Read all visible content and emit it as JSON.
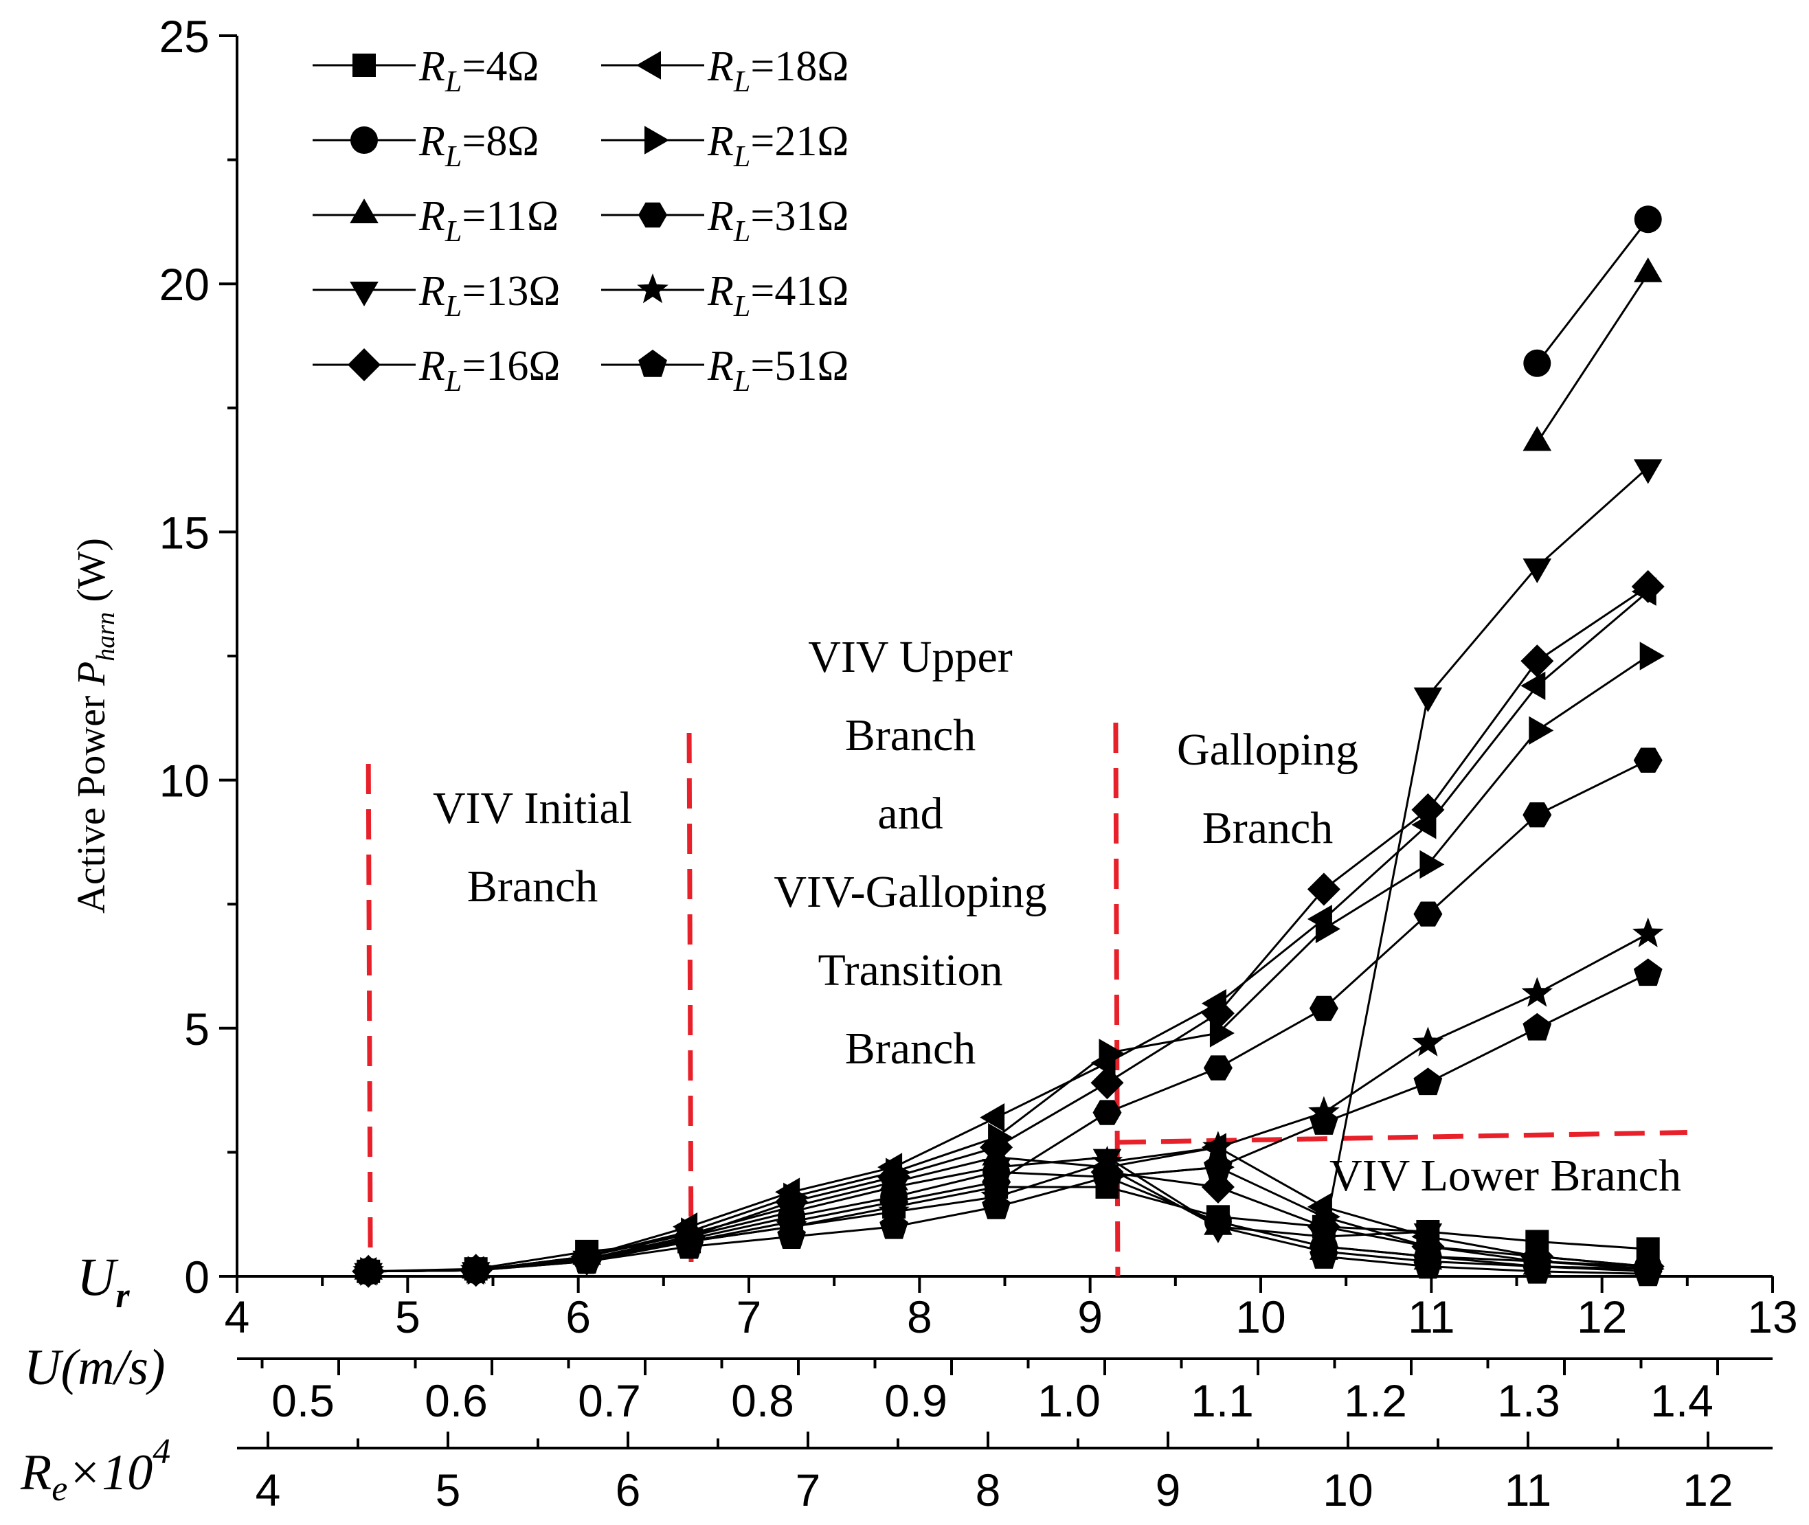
{
  "colors": {
    "ink": "#000000",
    "annotation": "#e8202a"
  },
  "chart_data": {
    "type": "line",
    "ylabel_main": "Active Power ",
    "ylabel_sym": "P",
    "ylabel_sub": "harn",
    "ylabel_unit": " (W)",
    "xlim": [
      4,
      13
    ],
    "ylim": [
      0,
      25
    ],
    "x_ticks": [
      "4",
      "5",
      "6",
      "7",
      "8",
      "9",
      "10",
      "11",
      "12",
      "13"
    ],
    "y_ticks": [
      "0",
      "5",
      "10",
      "15",
      "20",
      "25"
    ],
    "axis_ur": {
      "sym": "U",
      "sub": "r"
    },
    "axis_u": {
      "label_sym": "U",
      "label_rest": "(m/s)",
      "ticks": [
        {
          "v": 0.5,
          "label": "0.5"
        },
        {
          "v": 0.6,
          "label": "0.6"
        },
        {
          "v": 0.7,
          "label": "0.7"
        },
        {
          "v": 0.8,
          "label": "0.8"
        },
        {
          "v": 0.9,
          "label": "0.9"
        },
        {
          "v": 1.0,
          "label": "1.0"
        },
        {
          "v": 1.1,
          "label": "1.1"
        },
        {
          "v": 1.2,
          "label": "1.2"
        },
        {
          "v": 1.3,
          "label": "1.3"
        },
        {
          "v": 1.4,
          "label": "1.4"
        }
      ]
    },
    "axis_re": {
      "label_sym": "R",
      "label_sub": "e",
      "label_mid": "×10",
      "label_sup": "4",
      "ticks": [
        {
          "v": 4,
          "label": "4"
        },
        {
          "v": 5,
          "label": "5"
        },
        {
          "v": 6,
          "label": "6"
        },
        {
          "v": 7,
          "label": "7"
        },
        {
          "v": 8,
          "label": "8"
        },
        {
          "v": 9,
          "label": "9"
        },
        {
          "v": 10,
          "label": "10"
        },
        {
          "v": 11,
          "label": "11"
        },
        {
          "v": 12,
          "label": "12"
        }
      ]
    },
    "x": [
      4.77,
      5.4,
      6.05,
      6.65,
      7.25,
      7.85,
      8.45,
      9.1,
      9.75,
      10.37,
      10.98,
      11.62,
      12.27
    ],
    "series": [
      {
        "name": "R_L=4Ω",
        "marker": "square",
        "values": [
          0.1,
          0.15,
          0.5,
          0.7,
          1.0,
          1.4,
          1.8,
          1.8,
          1.2,
          1.0,
          0.9,
          0.7,
          0.55
        ]
      },
      {
        "name": "R_L=8Ω",
        "marker": "circle",
        "values": [
          0.1,
          0.12,
          0.35,
          0.75,
          1.2,
          1.6,
          2.1,
          2.0,
          null,
          null,
          null,
          18.4,
          21.3
        ]
      },
      {
        "name": "R_L=11Ω",
        "marker": "triangle-up",
        "values": [
          0.1,
          0.12,
          0.4,
          0.85,
          1.4,
          1.9,
          2.4,
          2.2,
          null,
          null,
          null,
          16.8,
          20.2
        ]
      },
      {
        "name": "R_L=13Ω",
        "marker": "triangle-down",
        "values": [
          0.1,
          0.12,
          0.35,
          0.8,
          1.3,
          1.8,
          2.2,
          2.4,
          1.0,
          0.8,
          11.7,
          14.3,
          16.3
        ]
      },
      {
        "name": "R_L=16Ω",
        "marker": "diamond",
        "values": [
          0.1,
          0.12,
          0.35,
          0.8,
          1.5,
          2.0,
          2.6,
          3.9,
          5.3,
          7.8,
          9.4,
          12.4,
          13.9
        ]
      },
      {
        "name": "R_L=18Ω",
        "marker": "triangle-left",
        "values": [
          0.1,
          0.12,
          0.4,
          1.0,
          1.7,
          2.2,
          3.2,
          4.3,
          5.5,
          7.2,
          9.1,
          11.9,
          13.8
        ]
      },
      {
        "name": "R_L=21Ω",
        "marker": "triangle-right",
        "values": [
          0.1,
          0.12,
          0.4,
          0.9,
          1.6,
          2.1,
          2.8,
          4.5,
          4.9,
          7.0,
          8.3,
          11.0,
          12.5
        ]
      },
      {
        "name": "R_L=31Ω",
        "marker": "hexagon",
        "values": [
          0.1,
          0.12,
          0.3,
          0.7,
          1.1,
          1.5,
          1.9,
          3.3,
          4.2,
          5.4,
          7.3,
          9.3,
          10.4
        ]
      },
      {
        "name": "R_L=41Ω",
        "marker": "star",
        "values": [
          0.1,
          0.12,
          0.35,
          0.7,
          1.0,
          1.3,
          1.6,
          2.3,
          2.6,
          3.3,
          4.7,
          5.7,
          6.9
        ]
      },
      {
        "name": "R_L=51Ω",
        "marker": "pentagon",
        "values": [
          0.1,
          0.12,
          0.3,
          0.6,
          0.8,
          1.0,
          1.4,
          2.0,
          2.2,
          3.1,
          3.9,
          5.0,
          6.1
        ]
      }
    ],
    "series_low": [
      {
        "name": "R_L=8Ω",
        "marker": "circle",
        "x": [
          9.1,
          9.75,
          10.37,
          10.98,
          11.62,
          12.27
        ],
        "values": [
          2.0,
          1.1,
          0.6,
          0.4,
          0.3,
          0.2
        ]
      },
      {
        "name": "R_L=11Ω",
        "marker": "triangle-up",
        "x": [
          9.1,
          9.75,
          10.37,
          10.98,
          11.62,
          12.27
        ],
        "values": [
          2.2,
          1.0,
          0.5,
          0.3,
          0.2,
          0.15
        ]
      },
      {
        "name": "R_L=13Ω",
        "marker": "triangle-down",
        "x": [
          10.37,
          10.98
        ],
        "values": [
          0.8,
          0.9
        ]
      },
      {
        "name": "R_L=16Ω",
        "marker": "diamond",
        "x": [
          9.1,
          9.75,
          10.37,
          10.98,
          11.62,
          12.27
        ],
        "values": [
          2.1,
          1.8,
          1.0,
          0.6,
          0.4,
          0.2
        ]
      },
      {
        "name": "R_L=18Ω",
        "marker": "triangle-left",
        "x": [
          9.1,
          9.75,
          10.37,
          10.98,
          11.62,
          12.27
        ],
        "values": [
          2.2,
          2.6,
          1.4,
          0.8,
          0.4,
          0.2
        ]
      },
      {
        "name": "R_L=21Ω",
        "marker": "triangle-right",
        "x": [
          9.1,
          9.75,
          10.37,
          10.98,
          11.62,
          12.27
        ],
        "values": [
          2.0,
          2.2,
          1.2,
          0.6,
          0.3,
          0.15
        ]
      },
      {
        "name": "R_L=31Ω",
        "marker": "hexagon",
        "x": [
          10.37,
          10.98,
          11.62,
          12.27
        ],
        "values": [
          0.6,
          0.4,
          0.2,
          0.1
        ]
      },
      {
        "name": "R_L=51Ω",
        "marker": "pentagon",
        "x": [
          10.37,
          10.98,
          11.62,
          12.27
        ],
        "values": [
          0.4,
          0.2,
          0.1,
          0.05
        ]
      }
    ],
    "legend": {
      "position": "top-left",
      "entries": [
        {
          "marker": "square",
          "sym": "R",
          "sub": "L",
          "value": "=4Ω"
        },
        {
          "marker": "triangle-left",
          "sym": "R",
          "sub": "L",
          "value": "=18Ω"
        },
        {
          "marker": "circle",
          "sym": "R",
          "sub": "L",
          "value": "=8Ω"
        },
        {
          "marker": "triangle-right",
          "sym": "R",
          "sub": "L",
          "value": "=21Ω"
        },
        {
          "marker": "triangle-up",
          "sym": "R",
          "sub": "L",
          "value": "=11Ω"
        },
        {
          "marker": "hexagon",
          "sym": "R",
          "sub": "L",
          "value": "=31Ω"
        },
        {
          "marker": "triangle-down",
          "sym": "R",
          "sub": "L",
          "value": "=13Ω"
        },
        {
          "marker": "star",
          "sym": "R",
          "sub": "L",
          "value": "=41Ω"
        },
        {
          "marker": "diamond",
          "sym": "R",
          "sub": "L",
          "value": "=16Ω"
        },
        {
          "marker": "pentagon",
          "sym": "R",
          "sub": "L",
          "value": "=51Ω"
        }
      ]
    },
    "region_boundaries_ur": [
      4.77,
      6.65,
      9.15
    ],
    "lower_branch_guide": {
      "x": [
        9.15,
        12.5
      ],
      "y": [
        2.7,
        2.9
      ]
    },
    "annotations": [
      {
        "lines": [
          "VIV Initial",
          "Branch"
        ]
      },
      {
        "lines": [
          "VIV Upper",
          "Branch",
          "and",
          "VIV-Galloping",
          "Transition",
          "Branch"
        ]
      },
      {
        "lines": [
          "Galloping",
          "Branch"
        ]
      },
      {
        "lines": [
          "VIV Lower Branch"
        ]
      }
    ]
  }
}
